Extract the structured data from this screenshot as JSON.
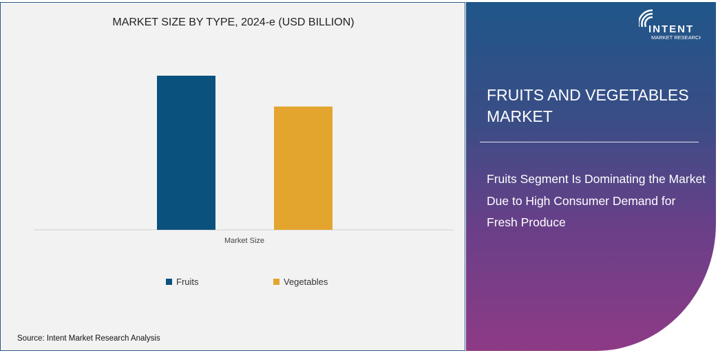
{
  "chart_data": {
    "type": "bar",
    "title": "MARKET SIZE BY TYPE, 2024-e (USD BILLION)",
    "categories": [
      "Market Size"
    ],
    "series": [
      {
        "name": "Fruits",
        "values": [
          100
        ],
        "color": "#0b517e"
      },
      {
        "name": "Vegetables",
        "values": [
          80
        ],
        "color": "#e3a52e"
      }
    ],
    "xlabel": "",
    "ylabel": "",
    "ylim": [
      0,
      100
    ],
    "grid": false,
    "legend": "bottom"
  },
  "source": "Source:  Intent Market Research Analysis",
  "panel": {
    "logo_text": "INTENT MARKET RESEARCH",
    "logo_main": "INTENT",
    "logo_sub": "MARKET RESEARCH",
    "title": "FRUITS AND VEGETABLES MARKET",
    "headline": "Fruits Segment Is Dominating the Market Due to High Consumer Demand for Fresh Produce"
  }
}
